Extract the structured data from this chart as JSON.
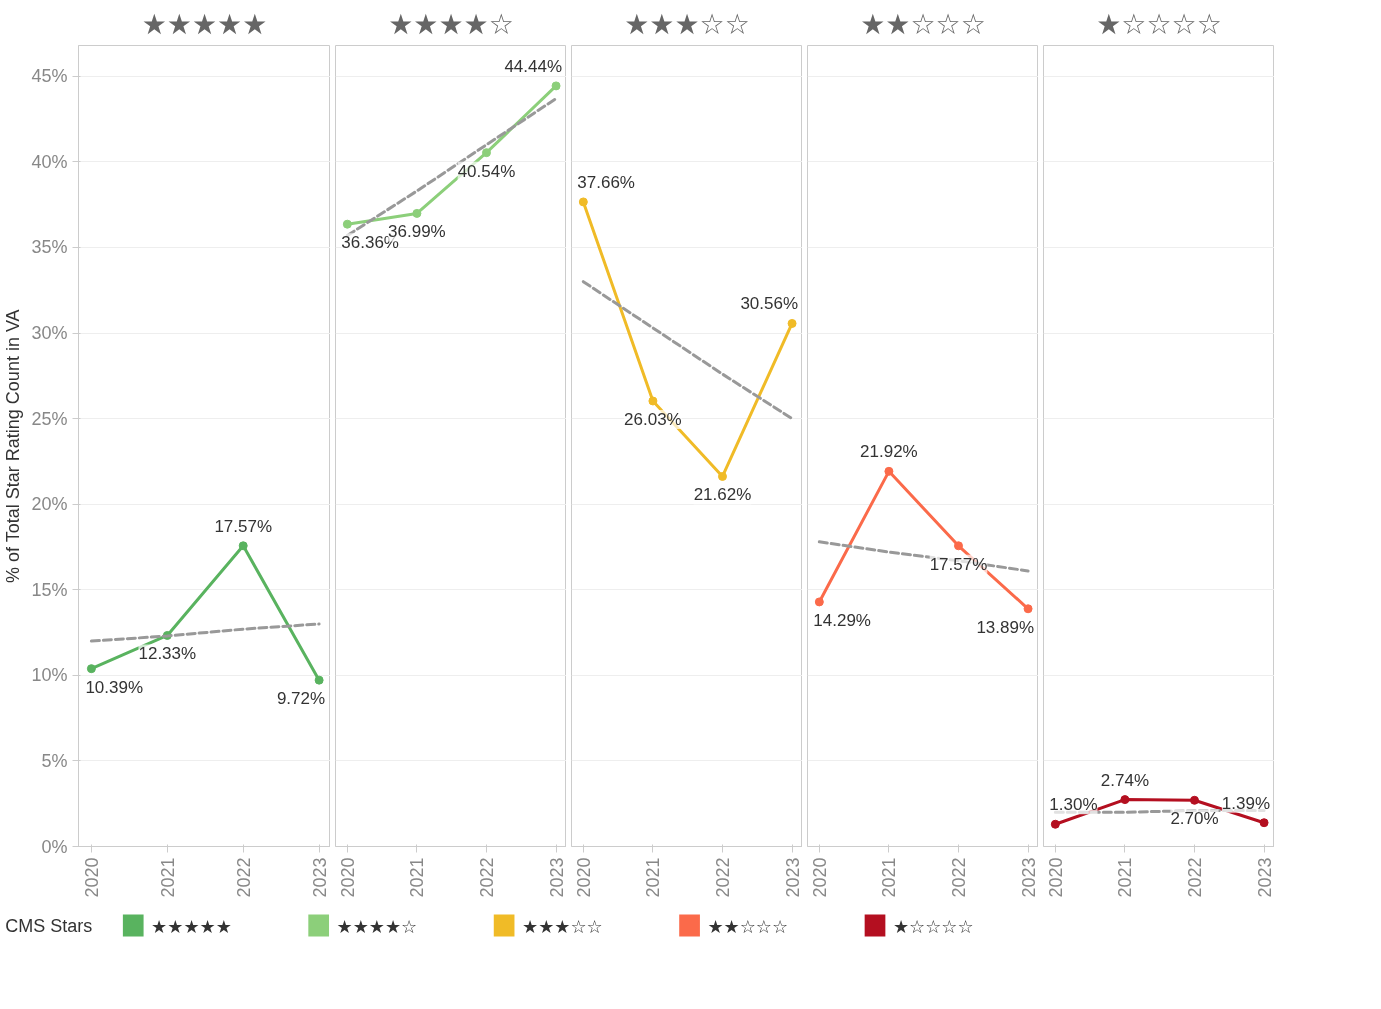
{
  "chart_data": [
    {
      "type": "line",
      "title": "★★★★★",
      "ylabel": "% of Total Star Rating Count in VA",
      "x": [
        2020,
        2021,
        2022,
        2023
      ],
      "xlim": [
        2019.83,
        2023.15
      ],
      "xticks": [
        2020,
        2021,
        2022,
        2023
      ],
      "ylim": [
        0,
        46.8
      ],
      "yticks": [
        {
          "value": 0,
          "label": "0%"
        },
        {
          "value": 5,
          "label": "5%"
        },
        {
          "value": 10,
          "label": "10%"
        },
        {
          "value": 15,
          "label": "15%"
        },
        {
          "value": 20,
          "label": "20%"
        },
        {
          "value": 25,
          "label": "25%"
        },
        {
          "value": 30,
          "label": "30%"
        },
        {
          "value": 35,
          "label": "35%"
        },
        {
          "value": 40,
          "label": "40%"
        },
        {
          "value": 45,
          "label": "45%"
        }
      ],
      "grid": "y",
      "legend": "bottom",
      "legend_title": "CMS Stars",
      "series": [
        {
          "name": "★★★★★",
          "marker": "circle",
          "color": "#59b35f",
          "values": [
            10.39,
            12.33,
            17.57,
            9.72
          ],
          "value_labels": [
            "10.39%",
            "12.33%",
            "17.57%",
            "9.72%"
          ]
        },
        {
          "type": "line",
          "values": [
            12.0,
            12.3,
            12.7,
            13.0
          ],
          "color": "#999999",
          "line_style": "dashed"
        }
      ]
    },
    {
      "type": "line",
      "title": "★★★★☆",
      "x": [
        2020,
        2021,
        2022,
        2023
      ],
      "xlim": [
        2019.83,
        2023.15
      ],
      "xticks": [
        2020,
        2021,
        2022,
        2023
      ],
      "ylim": [
        0,
        46.8
      ],
      "yticks": [
        0,
        5,
        10,
        15,
        20,
        25,
        30,
        35,
        40,
        45
      ],
      "tick_labels": "x",
      "grid": "y",
      "legend": "bottom",
      "series": [
        {
          "name": "★★★★☆",
          "marker": "circle",
          "color": "#8ccf7a",
          "values": [
            36.36,
            36.99,
            40.54,
            44.44
          ],
          "value_labels": [
            "36.36%",
            "36.99%",
            "40.54%",
            "44.44%"
          ]
        },
        {
          "type": "line",
          "values": [
            35.7,
            38.3,
            41.0,
            43.7
          ],
          "color": "#999999",
          "line_style": "dashed"
        }
      ]
    },
    {
      "type": "line",
      "title": "★★★☆☆",
      "x": [
        2020,
        2021,
        2022,
        2023
      ],
      "xlim": [
        2019.83,
        2023.15
      ],
      "xticks": [
        2020,
        2021,
        2022,
        2023
      ],
      "ylim": [
        0,
        46.8
      ],
      "yticks": [
        0,
        5,
        10,
        15,
        20,
        25,
        30,
        35,
        40,
        45
      ],
      "tick_labels": "x",
      "grid": "y",
      "legend": "bottom",
      "series": [
        {
          "name": "★★★☆☆",
          "marker": "circle",
          "color": "#f0bb27",
          "values": [
            37.66,
            26.03,
            21.62,
            30.56
          ],
          "value_labels": [
            "37.66%",
            "26.03%",
            "21.62%",
            "30.56%"
          ]
        },
        {
          "type": "line",
          "values": [
            33.0,
            30.3,
            27.6,
            25.0
          ],
          "color": "#999999",
          "line_style": "dashed"
        }
      ]
    },
    {
      "type": "line",
      "title": "★★☆☆☆",
      "x": [
        2020,
        2021,
        2022,
        2023
      ],
      "xlim": [
        2019.83,
        2023.15
      ],
      "xticks": [
        2020,
        2021,
        2022,
        2023
      ],
      "ylim": [
        0,
        46.8
      ],
      "yticks": [
        0,
        5,
        10,
        15,
        20,
        25,
        30,
        35,
        40,
        45
      ],
      "tick_labels": "x",
      "grid": "y",
      "legend": "bottom",
      "series": [
        {
          "name": "★★☆☆☆",
          "marker": "circle",
          "color": "#fb6a4a",
          "values": [
            14.29,
            21.92,
            17.57,
            13.89
          ],
          "value_labels": [
            "14.29%",
            "21.92%",
            "17.57%",
            "13.89%"
          ]
        },
        {
          "type": "line",
          "values": [
            17.8,
            17.2,
            16.7,
            16.1
          ],
          "color": "#999999",
          "line_style": "dashed"
        }
      ]
    },
    {
      "type": "line",
      "title": "★☆☆☆☆",
      "x": [
        2020,
        2021,
        2022,
        2023
      ],
      "xlim": [
        2019.83,
        2023.15
      ],
      "xticks": [
        2020,
        2021,
        2022,
        2023
      ],
      "ylim": [
        0,
        46.8
      ],
      "yticks": [
        0,
        5,
        10,
        15,
        20,
        25,
        30,
        35,
        40,
        45
      ],
      "tick_labels": "x",
      "grid": "y",
      "legend": "bottom",
      "series": [
        {
          "name": "★☆☆☆☆",
          "marker": "circle",
          "color": "#b40f20",
          "values": [
            1.3,
            2.74,
            2.7,
            1.39
          ],
          "value_labels": [
            "1.30%",
            "2.74%",
            "2.70%",
            "1.39%"
          ]
        },
        {
          "type": "line",
          "values": [
            2.0,
            2.0,
            2.1,
            2.1
          ],
          "color": "#999999",
          "line_style": "dashed"
        }
      ]
    }
  ]
}
